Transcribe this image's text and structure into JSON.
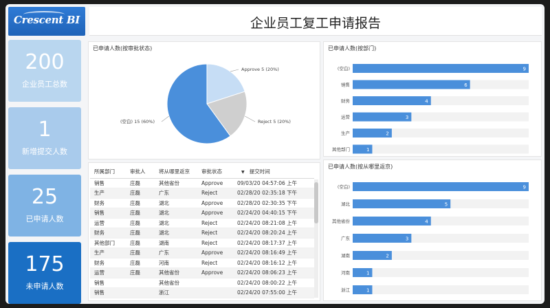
{
  "header": {
    "logo_text": "Crescent BI",
    "title": "企业员工复工申请报告"
  },
  "kpis": [
    {
      "value": "200",
      "label": "企业员工总数"
    },
    {
      "value": "1",
      "label": "新增提交人数"
    },
    {
      "value": "25",
      "label": "已申请人数"
    },
    {
      "value": "175",
      "label": "未申请人数"
    }
  ],
  "pie_panel": {
    "title": "已申请人数(按审批状态)"
  },
  "bar_panel_1": {
    "title": "已申请人数(按部门)"
  },
  "bar_panel_2": {
    "title": "已申请人数(按从哪里返京)"
  },
  "table": {
    "headers": [
      "所属部门",
      "审批人",
      "将从哪里返京",
      "审批状态",
      "提交时间"
    ],
    "rows": [
      [
        "销售",
        "庄磊",
        "其他省份",
        "Approve",
        "09/03/20 04:57:06 上午"
      ],
      [
        "生产",
        "庄磊",
        "广东",
        "Reject",
        "02/28/20 02:35:18 下午"
      ],
      [
        "财务",
        "庄磊",
        "湖北",
        "Approve",
        "02/28/20 02:30:35 下午"
      ],
      [
        "销售",
        "庄磊",
        "湖北",
        "Approve",
        "02/24/20 04:40:15 下午"
      ],
      [
        "运营",
        "庄磊",
        "湖北",
        "Reject",
        "02/24/20 08:21:08 上午"
      ],
      [
        "财务",
        "庄磊",
        "湖北",
        "Reject",
        "02/24/20 08:20:24 上午"
      ],
      [
        "其他部门",
        "庄磊",
        "湖南",
        "Reject",
        "02/24/20 08:17:37 上午"
      ],
      [
        "生产",
        "庄磊",
        "广东",
        "Approve",
        "02/24/20 08:16:49 上午"
      ],
      [
        "财务",
        "庄磊",
        "河南",
        "Reject",
        "02/24/20 08:16:12 上午"
      ],
      [
        "运营",
        "庄磊",
        "其他省份",
        "Approve",
        "02/24/20 08:06:23 上午"
      ],
      [
        "销售",
        "",
        "其他省份",
        "",
        "02/24/20 08:00:22 上午"
      ],
      [
        "销售",
        "",
        "浙江",
        "",
        "02/24/20 07:55:00 上午"
      ]
    ]
  },
  "colors": {
    "accent": "#4a8fdb",
    "pie_blank": "#4a8fdb",
    "pie_approve": "#c6ddf5",
    "pie_reject": "#cfcfcf",
    "kpi_dark": "#1a6fc4"
  },
  "chart_data": [
    {
      "type": "pie",
      "title": "已申请人数(按审批状态)",
      "slices": [
        {
          "label": "(空白)",
          "value": 15,
          "percent": "60%",
          "display": "(空白) 15 (60%)"
        },
        {
          "label": "Approve",
          "value": 5,
          "percent": "20%",
          "display": "Approve 5 (20%)"
        },
        {
          "label": "Reject",
          "value": 5,
          "percent": "20%",
          "display": "Reject 5 (20%)"
        }
      ]
    },
    {
      "type": "bar",
      "orientation": "horizontal",
      "title": "已申请人数(按部门)",
      "categories": [
        "(空白)",
        "销售",
        "财务",
        "运营",
        "生产",
        "其他部门"
      ],
      "values": [
        9,
        6,
        4,
        3,
        2,
        1
      ],
      "xlim": [
        0,
        9
      ]
    },
    {
      "type": "bar",
      "orientation": "horizontal",
      "title": "已申请人数(按从哪里返京)",
      "categories": [
        "(空白)",
        "湖北",
        "其他省份",
        "广东",
        "湖南",
        "河南",
        "浙江"
      ],
      "values": [
        9,
        5,
        4,
        3,
        2,
        1,
        1
      ],
      "xlim": [
        0,
        9
      ]
    }
  ]
}
